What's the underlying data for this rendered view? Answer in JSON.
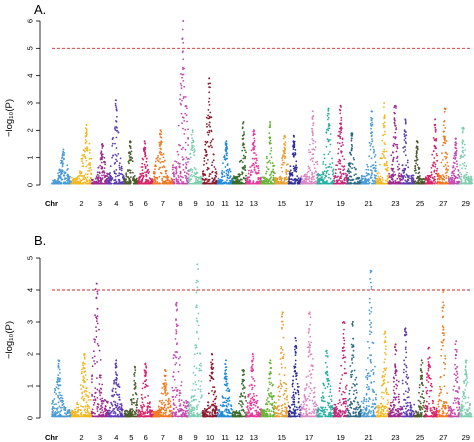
{
  "chart_data": [
    {
      "type": "scatter",
      "panel_label": "A.",
      "ylabel": "−log₁₀(P)",
      "ylim": [
        0,
        6
      ],
      "yticks": [
        0,
        1,
        2,
        3,
        4,
        5,
        6
      ],
      "threshold": 5,
      "threshold_color": "#d62728",
      "x_axis_word": "Chr",
      "chromosome_tick_labels": [
        "2",
        "3",
        "4",
        "5",
        "6",
        "7",
        "8",
        "9",
        "10",
        "11",
        "12",
        "13",
        "15",
        "17",
        "19",
        "21",
        "23",
        "25",
        "27",
        "29"
      ],
      "peak_max_per_chromosome": [
        1.3,
        2.2,
        1.5,
        3.1,
        1.6,
        1.6,
        2.0,
        6.0,
        2.0,
        3.9,
        1.6,
        2.3,
        2.0,
        2.3,
        1.8,
        1.8,
        2.7,
        2.8,
        2.9,
        1.9,
        2.7,
        3.0,
        2.9,
        2.4,
        1.6,
        2.4,
        2.8,
        1.7,
        2.1
      ],
      "grid": false,
      "legend": "none"
    },
    {
      "type": "scatter",
      "panel_label": "B.",
      "ylabel": "−log₁₀(P)",
      "ylim": [
        0,
        5
      ],
      "yticks": [
        0,
        1,
        2,
        3,
        4,
        5
      ],
      "threshold": 4,
      "threshold_color": "#d62728",
      "x_axis_word": "Chr",
      "chromosome_tick_labels": [
        "2",
        "3",
        "4",
        "5",
        "6",
        "7",
        "8",
        "9",
        "10",
        "11",
        "12",
        "13",
        "15",
        "17",
        "19",
        "21",
        "23",
        "25",
        "27",
        "29"
      ],
      "peak_max_per_chromosome": [
        1.8,
        2.0,
        4.2,
        1.8,
        1.6,
        1.7,
        1.5,
        3.6,
        4.8,
        2.0,
        1.8,
        1.5,
        2.0,
        1.8,
        3.3,
        2.5,
        3.3,
        2.1,
        3.0,
        3.0,
        4.6,
        2.7,
        2.3,
        2.8,
        1.8,
        2.2,
        4.0,
        2.4,
        1.8
      ],
      "grid": false,
      "legend": "none"
    }
  ],
  "colors": {
    "chromosome_palette": [
      "#4a9bd6",
      "#f2b824",
      "#9c2b8e",
      "#5a3cb0",
      "#4a5a2a",
      "#d6246a",
      "#f07a22",
      "#c44bb0",
      "#7ecfb0",
      "#8b1a2e",
      "#1f8ad8",
      "#3a6b2a",
      "#e83a9a",
      "#6bb33a",
      "#e8a034",
      "#2d2d9a",
      "#d98ac2",
      "#2ab0a0",
      "#c3287a",
      "#2a6a80",
      "#4a9bd6",
      "#f2b824",
      "#9c2b8e",
      "#5a3cb0",
      "#4a5a2a",
      "#d6246a",
      "#f07a22",
      "#c44bb0",
      "#7ecfb0"
    ]
  }
}
